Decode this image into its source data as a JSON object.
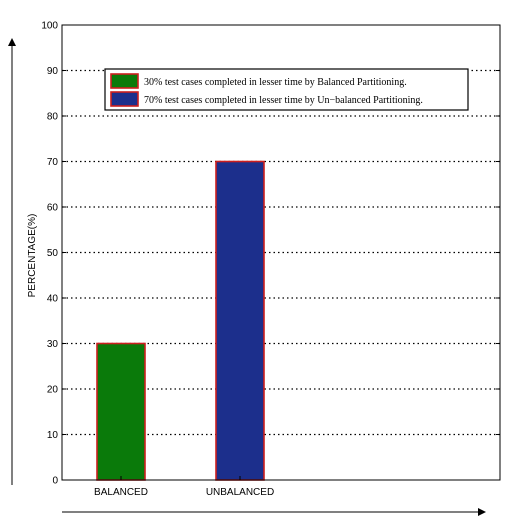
{
  "chart_data": {
    "type": "bar",
    "categories": [
      "BALANCED",
      "UNBALANCED"
    ],
    "values": [
      30,
      70
    ],
    "bar_colors": [
      "#0a7a0a",
      "#1c2f8c"
    ],
    "bar_edge_color": "#cc1f1f",
    "ylabel": "PERCENTAGE(%)",
    "xlabel": "",
    "title": "",
    "ylim": [
      0,
      100
    ],
    "yticks": [
      0,
      10,
      20,
      30,
      40,
      50,
      60,
      70,
      80,
      90,
      100
    ],
    "grid": "dotted-horizontal",
    "legend": {
      "placement": "top",
      "entries": [
        {
          "label": "30% test cases completed in lesser time by  Balanced Partitioning.",
          "color": "#0a7a0a"
        },
        {
          "label": "70% test cases completed in lesser time  by Un−balanced Partitioning.",
          "color": "#1c2f8c"
        }
      ]
    }
  }
}
